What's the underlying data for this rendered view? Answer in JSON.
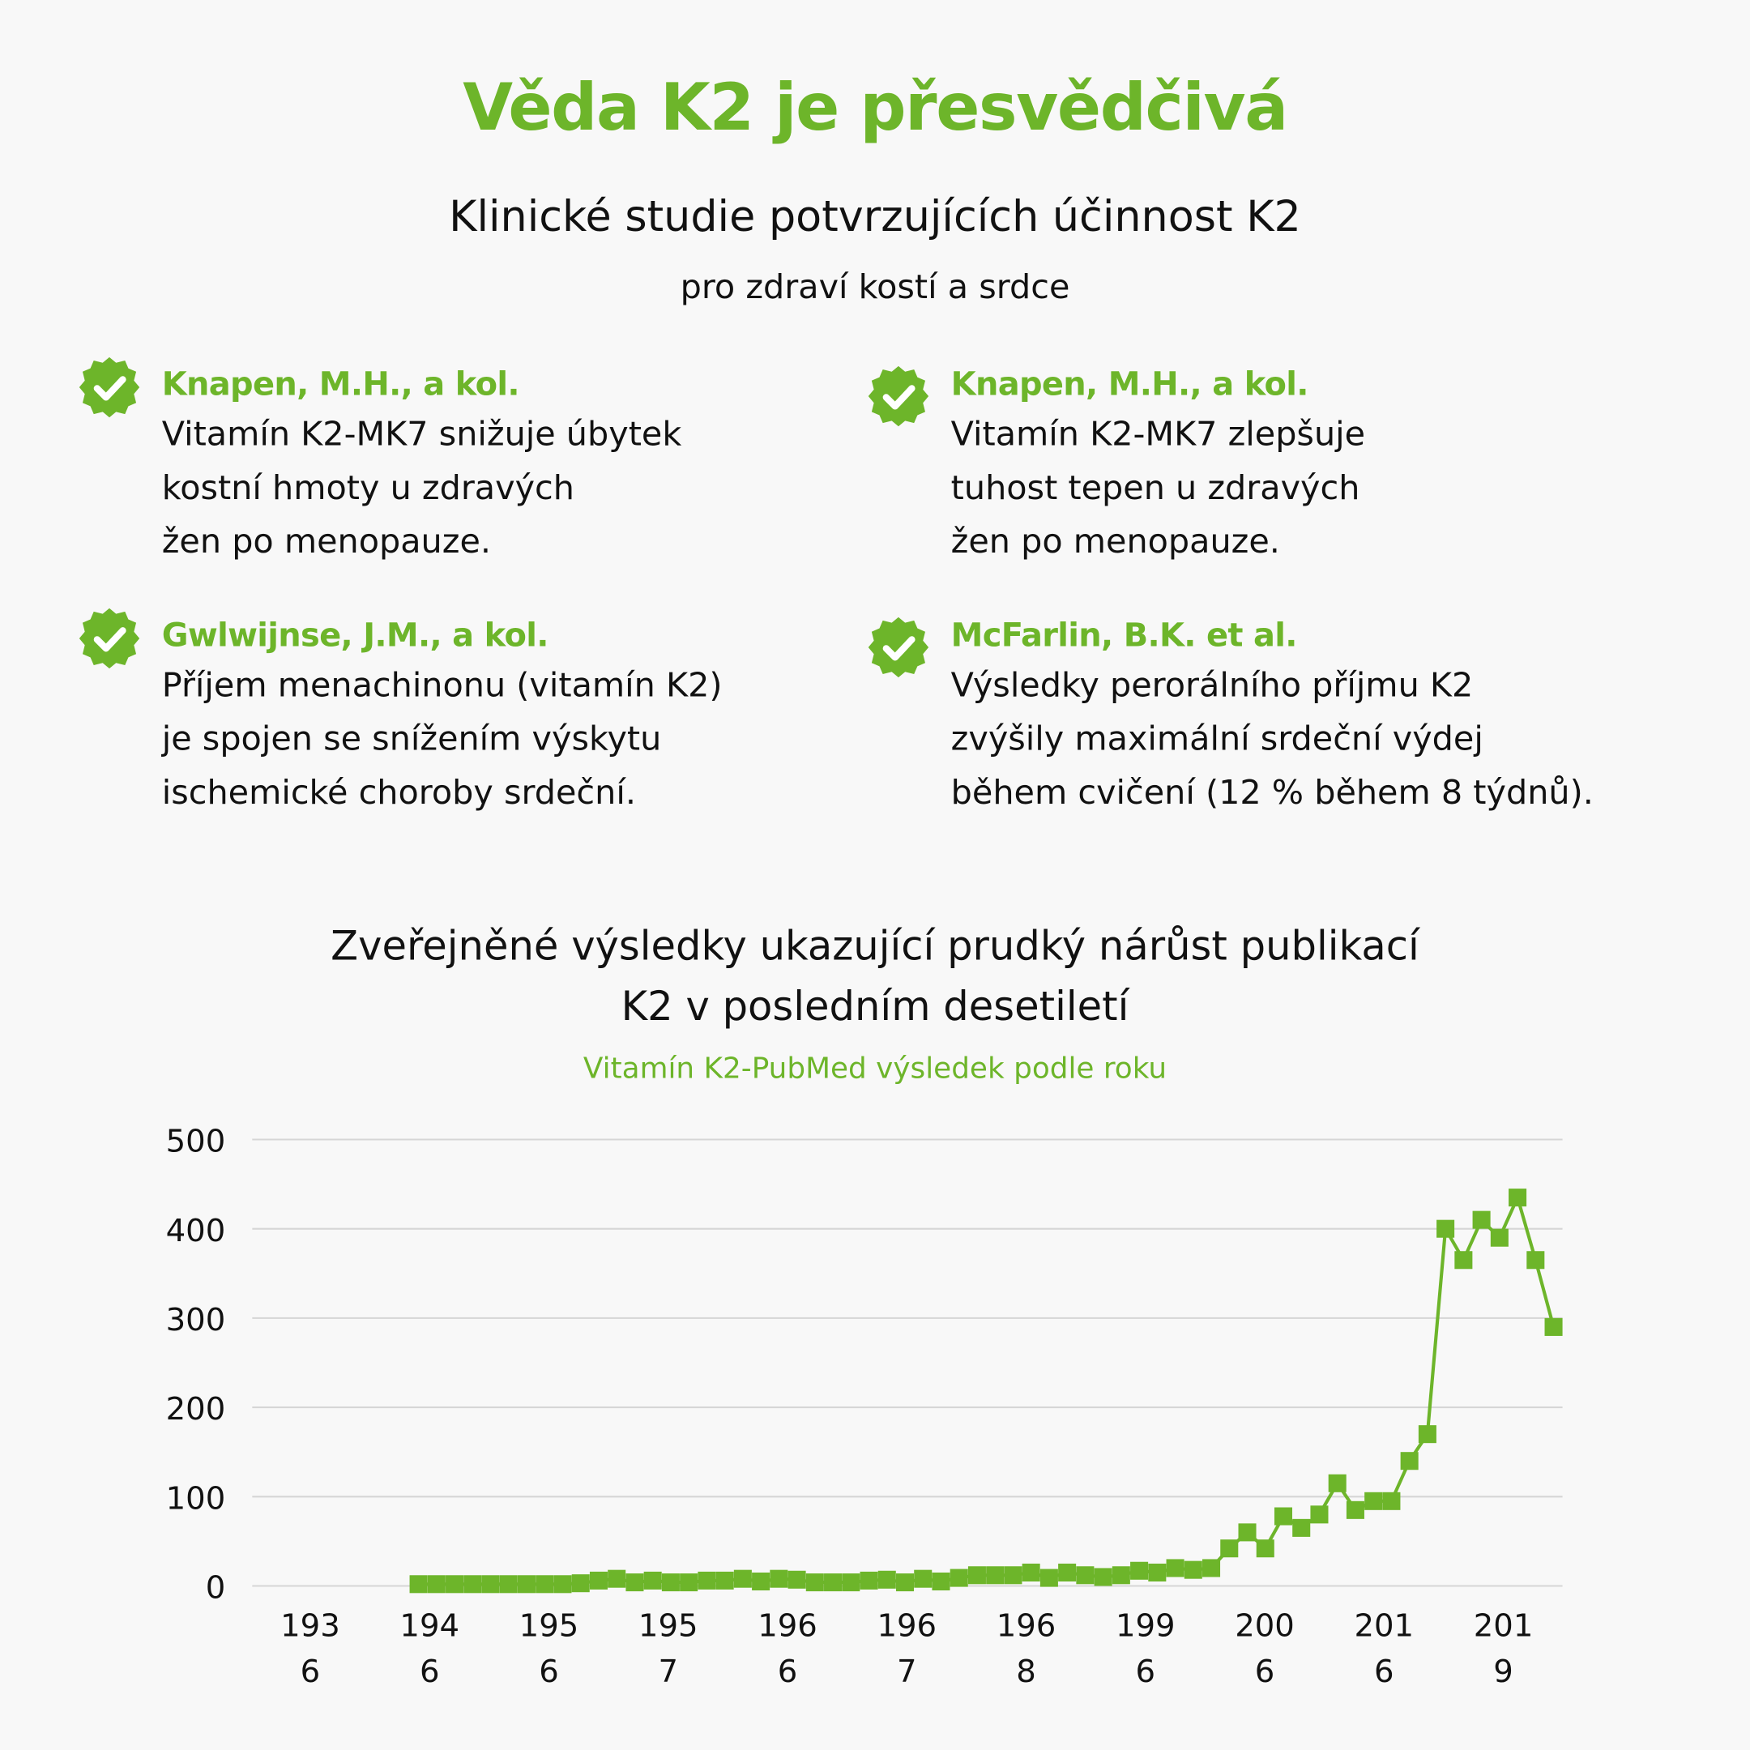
{
  "header": {
    "title": "Věda K2 je přesvědčivá",
    "subtitle": "Klinické studie potvrzujících účinnost K2",
    "subtitle2": "pro zdraví kostí a srdce"
  },
  "studies": [
    {
      "author": "Knapen, M.H., a kol.",
      "desc": "Vitamín K2-MK7 snižuje úbytek\nkostní hmoty u zdravých\nžen po menopauze.",
      "icon": "check-badge-icon"
    },
    {
      "author": "Knapen, M.H., a kol.",
      "desc": "Vitamín K2-MK7 zlepšuje\ntuhost tepen u zdravých\nžen po menopauze.",
      "icon": "check-badge-icon"
    },
    {
      "author": "Gwlwijnse, J.M., a kol.",
      "desc": "Příjem menachinonu (vitamín K2)\nje spojen se snížením výskytu\nischemické choroby srdeční.",
      "icon": "check-badge-icon"
    },
    {
      "author": "McFarlin, B.K. et al.",
      "desc": "Výsledky perorálního příjmu K2\nzvýšily maximální srdeční výdej\nběhem cvičení (12 % během 8 týdnů).",
      "icon": "check-badge-icon"
    }
  ],
  "colors": {
    "accent": "#6db52a",
    "grid": "#d6d6d6"
  },
  "chart_data": {
    "type": "line",
    "title": "Zveřejněné výsledky ukazující prudký nárůst publikací\nK2 v posledním desetiletí",
    "subtitle": "Vitamín K2-PubMed výsledek podle roku",
    "marker": "square",
    "grid": true,
    "ylim": [
      0,
      500
    ],
    "yticks": [
      "0",
      "100",
      "200",
      "300",
      "400",
      "500"
    ],
    "xticks": [
      [
        "193",
        "6"
      ],
      [
        "194",
        "6"
      ],
      [
        "195",
        "6"
      ],
      [
        "195",
        "7"
      ],
      [
        "196",
        "6"
      ],
      [
        "196",
        "7"
      ],
      [
        "196",
        "8"
      ],
      [
        "199",
        "6"
      ],
      [
        "200",
        "6"
      ],
      [
        "201",
        "6"
      ],
      [
        "201",
        "9"
      ]
    ],
    "series": [
      {
        "values": [
          2,
          2,
          2,
          2,
          2,
          2,
          2,
          2,
          2,
          3,
          6,
          8,
          4,
          6,
          4,
          4,
          6,
          6,
          8,
          5,
          8,
          7,
          4,
          4,
          4,
          6,
          7,
          4,
          8,
          5,
          9,
          12,
          12,
          12,
          15,
          9,
          15,
          12,
          10,
          12,
          17,
          15,
          20,
          18,
          20,
          42,
          60,
          42,
          78,
          65,
          80,
          115,
          85,
          95,
          95,
          140,
          170,
          400,
          365,
          410,
          390,
          435,
          365,
          290
        ]
      }
    ]
  }
}
